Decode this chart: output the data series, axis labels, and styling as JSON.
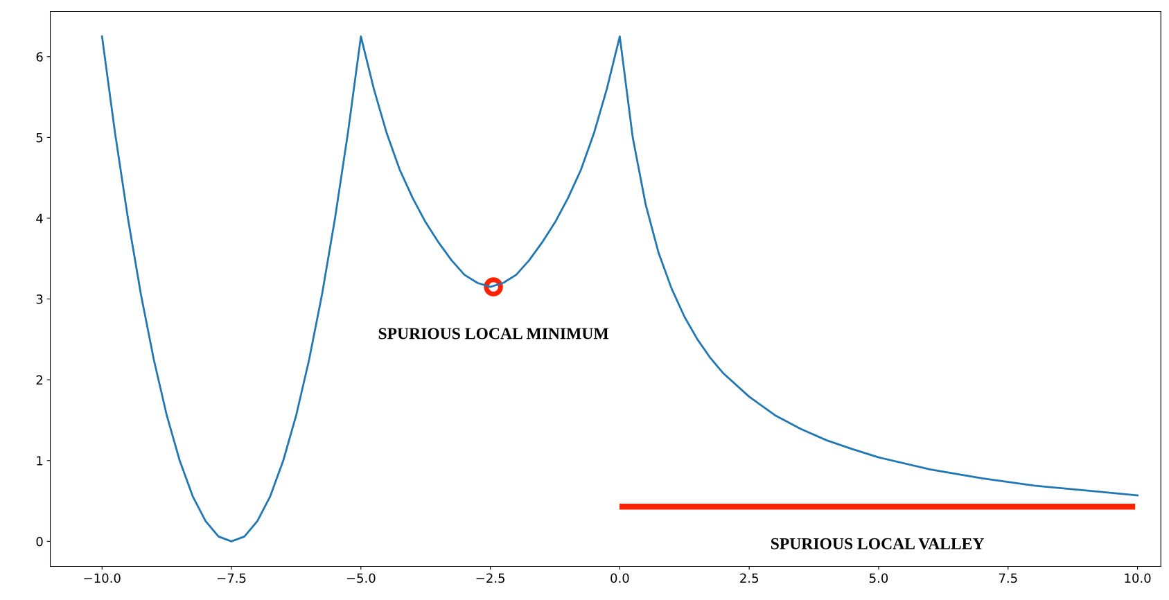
{
  "chart_data": {
    "type": "line",
    "xlim": [
      -11,
      10.45
    ],
    "ylim": [
      -0.31,
      6.56
    ],
    "xticks": [
      {
        "value": -10,
        "label": "−10.0"
      },
      {
        "value": -7.5,
        "label": "−7.5"
      },
      {
        "value": -5,
        "label": "−5.0"
      },
      {
        "value": -2.5,
        "label": "−2.5"
      },
      {
        "value": 0,
        "label": "0.0"
      },
      {
        "value": 2.5,
        "label": "2.5"
      },
      {
        "value": 5,
        "label": "5.0"
      },
      {
        "value": 7.5,
        "label": "7.5"
      },
      {
        "value": 10,
        "label": "10.0"
      }
    ],
    "yticks": [
      0,
      1,
      2,
      3,
      4,
      5,
      6
    ],
    "grid": false,
    "legend": false,
    "series": [
      {
        "color": "#1f77b4",
        "x": [
          -10,
          -9.75,
          -9.5,
          -9.25,
          -9,
          -8.75,
          -8.5,
          -8.25,
          -8,
          -7.75,
          -7.5,
          -7.25,
          -7,
          -6.75,
          -6.5,
          -6.25,
          -6,
          -5.75,
          -5.5,
          -5.25,
          -5,
          -4.75,
          -4.5,
          -4.25,
          -4,
          -3.75,
          -3.5,
          -3.25,
          -3,
          -2.75,
          -2.5,
          -2.25,
          -2,
          -1.75,
          -1.5,
          -1.25,
          -1,
          -0.75,
          -0.5,
          -0.25,
          0,
          0.25,
          0.5,
          0.75,
          1,
          1.25,
          1.5,
          1.75,
          2,
          2.5,
          3,
          3.5,
          4,
          4.5,
          5,
          6,
          7,
          8,
          9,
          10
        ],
        "values": [
          6.25,
          5.06,
          4.0,
          3.06,
          2.25,
          1.56,
          1.0,
          0.56,
          0.25,
          0.06,
          0,
          0.06,
          0.25,
          0.56,
          1.0,
          1.56,
          2.25,
          3.06,
          4.0,
          5.06,
          6.25,
          5.6,
          5.05,
          4.6,
          4.25,
          3.95,
          3.7,
          3.48,
          3.3,
          3.2,
          3.15,
          3.2,
          3.3,
          3.48,
          3.7,
          3.95,
          4.25,
          4.6,
          5.05,
          5.6,
          6.25,
          5.0,
          4.17,
          3.57,
          3.13,
          2.78,
          2.5,
          2.27,
          2.08,
          1.79,
          1.56,
          1.39,
          1.25,
          1.14,
          1.04,
          0.89,
          0.78,
          0.69,
          0.63,
          0.57
        ]
      },
      {
        "type": "scatter",
        "color": "#ff2200",
        "marker": "circle",
        "x": [
          -2.44
        ],
        "values": [
          3.15
        ]
      },
      {
        "type": "line",
        "color": "#ff2200",
        "x": [
          0.05,
          9.9
        ],
        "values": [
          0.43,
          0.43
        ]
      }
    ],
    "annotations": [
      "SPURIOUS LOCAL MINIMUM",
      "SPURIOUS LOCAL VALLEY"
    ]
  }
}
